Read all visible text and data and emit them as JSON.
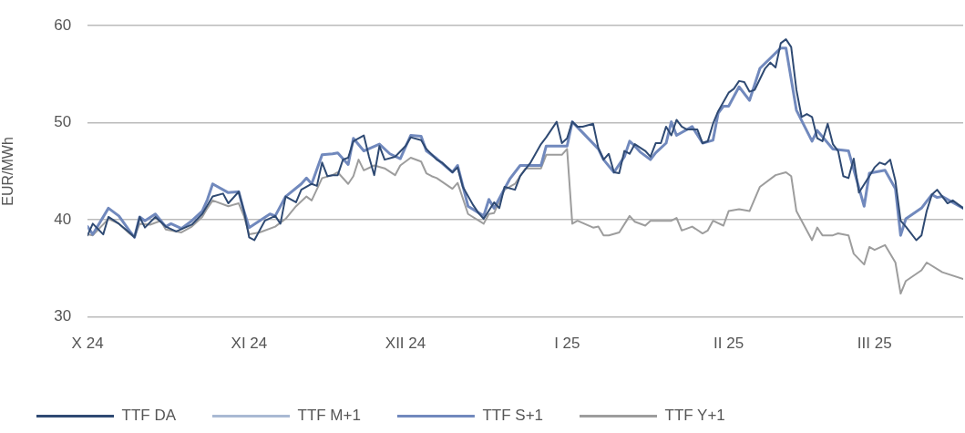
{
  "chart_data": {
    "type": "line",
    "ylabel": "EUR/MWh",
    "ylim": [
      30,
      60
    ],
    "yticks": [
      30,
      40,
      50,
      60
    ],
    "xlim": [
      "2024-10-01",
      "2025-03-18"
    ],
    "xticks": [
      {
        "value": "2024-10-01",
        "label": "X 24"
      },
      {
        "value": "2024-11-01",
        "label": "XI 24"
      },
      {
        "value": "2024-12-01",
        "label": "XII 24"
      },
      {
        "value": "2025-01-01",
        "label": "I 25"
      },
      {
        "value": "2025-02-01",
        "label": "II 25"
      },
      {
        "value": "2025-03-01",
        "label": "III 25"
      }
    ],
    "grid": "y",
    "legend": "bottom",
    "marker": "none",
    "line_style": "solid",
    "series": [
      {
        "name": "TTF DA",
        "color": "#2f4a73",
        "x": [
          "2024-10-01",
          "2024-10-02",
          "2024-10-04",
          "2024-10-05",
          "2024-10-07",
          "2024-10-09",
          "2024-10-10",
          "2024-10-11",
          "2024-10-12",
          "2024-10-14",
          "2024-10-16",
          "2024-10-18",
          "2024-10-21",
          "2024-10-23",
          "2024-10-25",
          "2024-10-27",
          "2024-10-28",
          "2024-10-30",
          "2024-10-31",
          "2024-11-01",
          "2024-11-02",
          "2024-11-04",
          "2024-11-06",
          "2024-11-07",
          "2024-11-08",
          "2024-11-10",
          "2024-11-11",
          "2024-11-13",
          "2024-11-14",
          "2024-11-15",
          "2024-11-16",
          "2024-11-17",
          "2024-11-18",
          "2024-11-19",
          "2024-11-20",
          "2024-11-21",
          "2024-11-23",
          "2024-11-24",
          "2024-11-25",
          "2024-11-26",
          "2024-11-27",
          "2024-11-29",
          "2024-12-01",
          "2024-12-02",
          "2024-12-04",
          "2024-12-05",
          "2024-12-07",
          "2024-12-08",
          "2024-12-10",
          "2024-12-11",
          "2024-12-12",
          "2024-12-14",
          "2024-12-15",
          "2024-12-16",
          "2024-12-18",
          "2024-12-19",
          "2024-12-20",
          "2024-12-22",
          "2024-12-23",
          "2024-12-25",
          "2024-12-27",
          "2024-12-28",
          "2024-12-30",
          "2024-12-31",
          "2025-01-01",
          "2025-01-02",
          "2025-01-03",
          "2025-01-04",
          "2025-01-06",
          "2025-01-07",
          "2025-01-08",
          "2025-01-09",
          "2025-01-10",
          "2025-01-11",
          "2025-01-12",
          "2025-01-13",
          "2025-01-14",
          "2025-01-16",
          "2025-01-17",
          "2025-01-18",
          "2025-01-19",
          "2025-01-20",
          "2025-01-21",
          "2025-01-22",
          "2025-01-23",
          "2025-01-24",
          "2025-01-26",
          "2025-01-27",
          "2025-01-28",
          "2025-01-29",
          "2025-01-30",
          "2025-02-01",
          "2025-02-02",
          "2025-02-03",
          "2025-02-04",
          "2025-02-05",
          "2025-02-06",
          "2025-02-07",
          "2025-02-08",
          "2025-02-09",
          "2025-02-10",
          "2025-02-11",
          "2025-02-12",
          "2025-02-13",
          "2025-02-14",
          "2025-02-15",
          "2025-02-16",
          "2025-02-17",
          "2025-02-18",
          "2025-02-19",
          "2025-02-20",
          "2025-02-21",
          "2025-02-22",
          "2025-02-23",
          "2025-02-24",
          "2025-02-25",
          "2025-02-26",
          "2025-02-28",
          "2025-03-01",
          "2025-03-02",
          "2025-03-03",
          "2025-03-04",
          "2025-03-05",
          "2025-03-06",
          "2025-03-07",
          "2025-03-09",
          "2025-03-10",
          "2025-03-11",
          "2025-03-12",
          "2025-03-13",
          "2025-03-15",
          "2025-03-16",
          "2025-03-18"
        ],
        "values": [
          38.4,
          39.6,
          38.5,
          40.3,
          39.6,
          38.7,
          38.2,
          40.3,
          39.2,
          40.3,
          39.3,
          38.8,
          39.5,
          40.6,
          42.4,
          42.7,
          41.7,
          42.9,
          40.9,
          38.2,
          37.9,
          39.9,
          40.4,
          39.6,
          42.4,
          41.8,
          43.1,
          43.7,
          43.5,
          45.9,
          44.5,
          44.6,
          44.6,
          46.2,
          46.4,
          48.1,
          48.7,
          46.5,
          44.6,
          47.6,
          46.2,
          46.5,
          47.6,
          48.5,
          48.2,
          47.3,
          46.2,
          45.9,
          44.9,
          45.4,
          43.4,
          41.5,
          40.7,
          40.1,
          41.8,
          41.2,
          43.4,
          43.1,
          44.5,
          45.9,
          47.8,
          48.5,
          50.1,
          47.9,
          48.4,
          50.1,
          49.6,
          49.6,
          49.9,
          47.4,
          46.2,
          46.8,
          44.9,
          44.8,
          47.1,
          46.8,
          47.8,
          47.1,
          46.5,
          47.9,
          47.9,
          49.6,
          48.7,
          50.3,
          49.6,
          49.3,
          49.3,
          47.9,
          48.1,
          49.9,
          51.2,
          53.1,
          53.5,
          54.3,
          54.2,
          53.2,
          53.4,
          54.5,
          55.6,
          56.2,
          55.7,
          58.2,
          58.6,
          57.8,
          53.4,
          50.6,
          50.9,
          50.6,
          48.4,
          48.1,
          49.9,
          47.8,
          47.1,
          44.5,
          44.3,
          46.3,
          42.8,
          44.5,
          45.4,
          45.9,
          45.7,
          46.2,
          44.0,
          39.9,
          39.3,
          37.9,
          38.4,
          40.9,
          42.6,
          43.1,
          41.7,
          42.0,
          41.2
        ]
      },
      {
        "name": "TTF M+1",
        "color": "#a9b9d3"
      },
      {
        "name": "TTF S+1",
        "color": "#7189bd",
        "x": [
          "2024-10-01",
          "2024-10-02",
          "2024-10-05",
          "2024-10-07",
          "2024-10-09",
          "2024-10-10",
          "2024-10-11",
          "2024-10-12",
          "2024-10-14",
          "2024-10-16",
          "2024-10-17",
          "2024-10-19",
          "2024-10-21",
          "2024-10-23",
          "2024-10-24",
          "2024-10-25",
          "2024-10-28",
          "2024-10-30",
          "2024-10-31",
          "2024-11-01",
          "2024-11-05",
          "2024-11-06",
          "2024-11-08",
          "2024-11-11",
          "2024-11-12",
          "2024-11-13",
          "2024-11-15",
          "2024-11-17",
          "2024-11-18",
          "2024-11-20",
          "2024-11-21",
          "2024-11-23",
          "2024-11-26",
          "2024-11-28",
          "2024-11-30",
          "2024-12-02",
          "2024-12-04",
          "2024-12-05",
          "2024-12-07",
          "2024-12-10",
          "2024-12-11",
          "2024-12-13",
          "2024-12-16",
          "2024-12-17",
          "2024-12-18",
          "2024-12-20",
          "2024-12-21",
          "2024-12-23",
          "2024-12-27",
          "2024-12-28",
          "2025-01-01",
          "2025-01-02",
          "2025-01-07",
          "2025-01-08",
          "2025-01-10",
          "2025-01-12",
          "2025-01-13",
          "2025-01-14",
          "2025-01-15",
          "2025-01-17",
          "2025-01-18",
          "2025-01-20",
          "2025-01-21",
          "2025-01-22",
          "2025-01-25",
          "2025-01-27",
          "2025-01-29",
          "2025-01-30",
          "2025-01-31",
          "2025-02-01",
          "2025-02-03",
          "2025-02-05",
          "2025-02-07",
          "2025-02-11",
          "2025-02-12",
          "2025-02-14",
          "2025-02-17",
          "2025-02-18",
          "2025-02-21",
          "2025-02-24",
          "2025-02-27",
          "2025-02-28",
          "2025-03-03",
          "2025-03-05",
          "2025-03-06",
          "2025-03-07",
          "2025-03-10",
          "2025-03-12",
          "2025-03-13",
          "2025-03-14",
          "2025-03-18"
        ],
        "values": [
          39.3,
          38.5,
          41.2,
          40.4,
          38.9,
          38.2,
          40.3,
          39.9,
          40.6,
          39.3,
          39.6,
          39.1,
          39.9,
          40.9,
          42.1,
          43.7,
          42.8,
          42.9,
          40.9,
          39.2,
          40.6,
          40.4,
          42.4,
          43.7,
          44.3,
          43.7,
          46.7,
          46.8,
          46.9,
          45.7,
          48.4,
          47.1,
          47.8,
          46.8,
          46.3,
          48.7,
          48.6,
          47.1,
          46.3,
          44.9,
          45.6,
          41.4,
          40.4,
          42.1,
          41.2,
          43.2,
          44.2,
          45.6,
          45.6,
          47.6,
          47.6,
          50.1,
          47.3,
          46.2,
          44.9,
          46.5,
          48.1,
          47.6,
          47.0,
          46.2,
          46.9,
          47.9,
          50.1,
          48.7,
          49.6,
          47.9,
          48.2,
          51.0,
          51.7,
          51.7,
          53.7,
          52.3,
          55.6,
          57.7,
          57.7,
          51.3,
          48.1,
          49.2,
          47.3,
          47.1,
          41.4,
          44.8,
          45.1,
          43.2,
          38.4,
          40.1,
          41.2,
          42.6,
          42.3,
          42.4,
          41.2
        ]
      },
      {
        "name": "TTF Y+1",
        "color": "#9d9d9d",
        "x": [
          "2024-10-01",
          "2024-10-02",
          "2024-10-05",
          "2024-10-07",
          "2024-10-09",
          "2024-10-10",
          "2024-10-11",
          "2024-10-13",
          "2024-10-15",
          "2024-10-16",
          "2024-10-19",
          "2024-10-21",
          "2024-10-23",
          "2024-10-24",
          "2024-10-25",
          "2024-10-28",
          "2024-10-30",
          "2024-10-31",
          "2024-11-01",
          "2024-11-03",
          "2024-11-06",
          "2024-11-08",
          "2024-11-10",
          "2024-11-12",
          "2024-11-13",
          "2024-11-15",
          "2024-11-17",
          "2024-11-18",
          "2024-11-20",
          "2024-11-21",
          "2024-11-22",
          "2024-11-23",
          "2024-11-25",
          "2024-11-27",
          "2024-11-29",
          "2024-11-30",
          "2024-12-02",
          "2024-12-04",
          "2024-12-05",
          "2024-12-06",
          "2024-12-07",
          "2024-12-10",
          "2024-12-11",
          "2024-12-13",
          "2024-12-16",
          "2024-12-17",
          "2024-12-18",
          "2024-12-20",
          "2024-12-22",
          "2024-12-24",
          "2024-12-27",
          "2024-12-28",
          "2024-12-31",
          "2025-01-01",
          "2025-01-02",
          "2025-01-03",
          "2025-01-06",
          "2025-01-07",
          "2025-01-08",
          "2025-01-09",
          "2025-01-11",
          "2025-01-13",
          "2025-01-14",
          "2025-01-16",
          "2025-01-17",
          "2025-01-21",
          "2025-01-22",
          "2025-01-23",
          "2025-01-25",
          "2025-01-27",
          "2025-01-28",
          "2025-01-29",
          "2025-01-31",
          "2025-02-01",
          "2025-02-03",
          "2025-02-05",
          "2025-02-07",
          "2025-02-10",
          "2025-02-12",
          "2025-02-13",
          "2025-02-14",
          "2025-02-17",
          "2025-02-18",
          "2025-02-19",
          "2025-02-21",
          "2025-02-22",
          "2025-02-24",
          "2025-02-25",
          "2025-02-27",
          "2025-02-28",
          "2025-03-01",
          "2025-03-03",
          "2025-03-05",
          "2025-03-06",
          "2025-03-07",
          "2025-03-10",
          "2025-03-11",
          "2025-03-14",
          "2025-03-18"
        ],
        "values": [
          38.5,
          38.4,
          40.1,
          39.6,
          38.6,
          38.2,
          39.6,
          39.5,
          39.9,
          39.0,
          38.7,
          39.3,
          40.3,
          41.2,
          42.0,
          41.4,
          41.7,
          40.4,
          38.5,
          38.7,
          39.3,
          40.1,
          41.4,
          42.4,
          42.0,
          44.3,
          44.6,
          44.9,
          43.7,
          44.5,
          46.2,
          45.1,
          45.6,
          45.3,
          44.6,
          45.6,
          46.4,
          46.0,
          44.8,
          44.5,
          44.3,
          43.2,
          43.8,
          40.6,
          39.6,
          40.6,
          40.7,
          43.1,
          43.7,
          45.3,
          45.3,
          46.7,
          46.7,
          47.3,
          39.6,
          39.9,
          39.2,
          39.3,
          38.4,
          38.4,
          38.7,
          40.4,
          39.8,
          39.4,
          39.9,
          39.9,
          40.2,
          38.9,
          39.3,
          38.6,
          38.9,
          39.9,
          39.4,
          40.9,
          41.1,
          40.9,
          43.4,
          44.6,
          44.9,
          44.5,
          40.9,
          37.9,
          39.2,
          38.4,
          38.4,
          38.6,
          38.4,
          36.5,
          35.4,
          37.2,
          36.9,
          37.4,
          35.6,
          32.4,
          33.7,
          34.8,
          35.6,
          34.6,
          33.9
        ]
      }
    ]
  }
}
